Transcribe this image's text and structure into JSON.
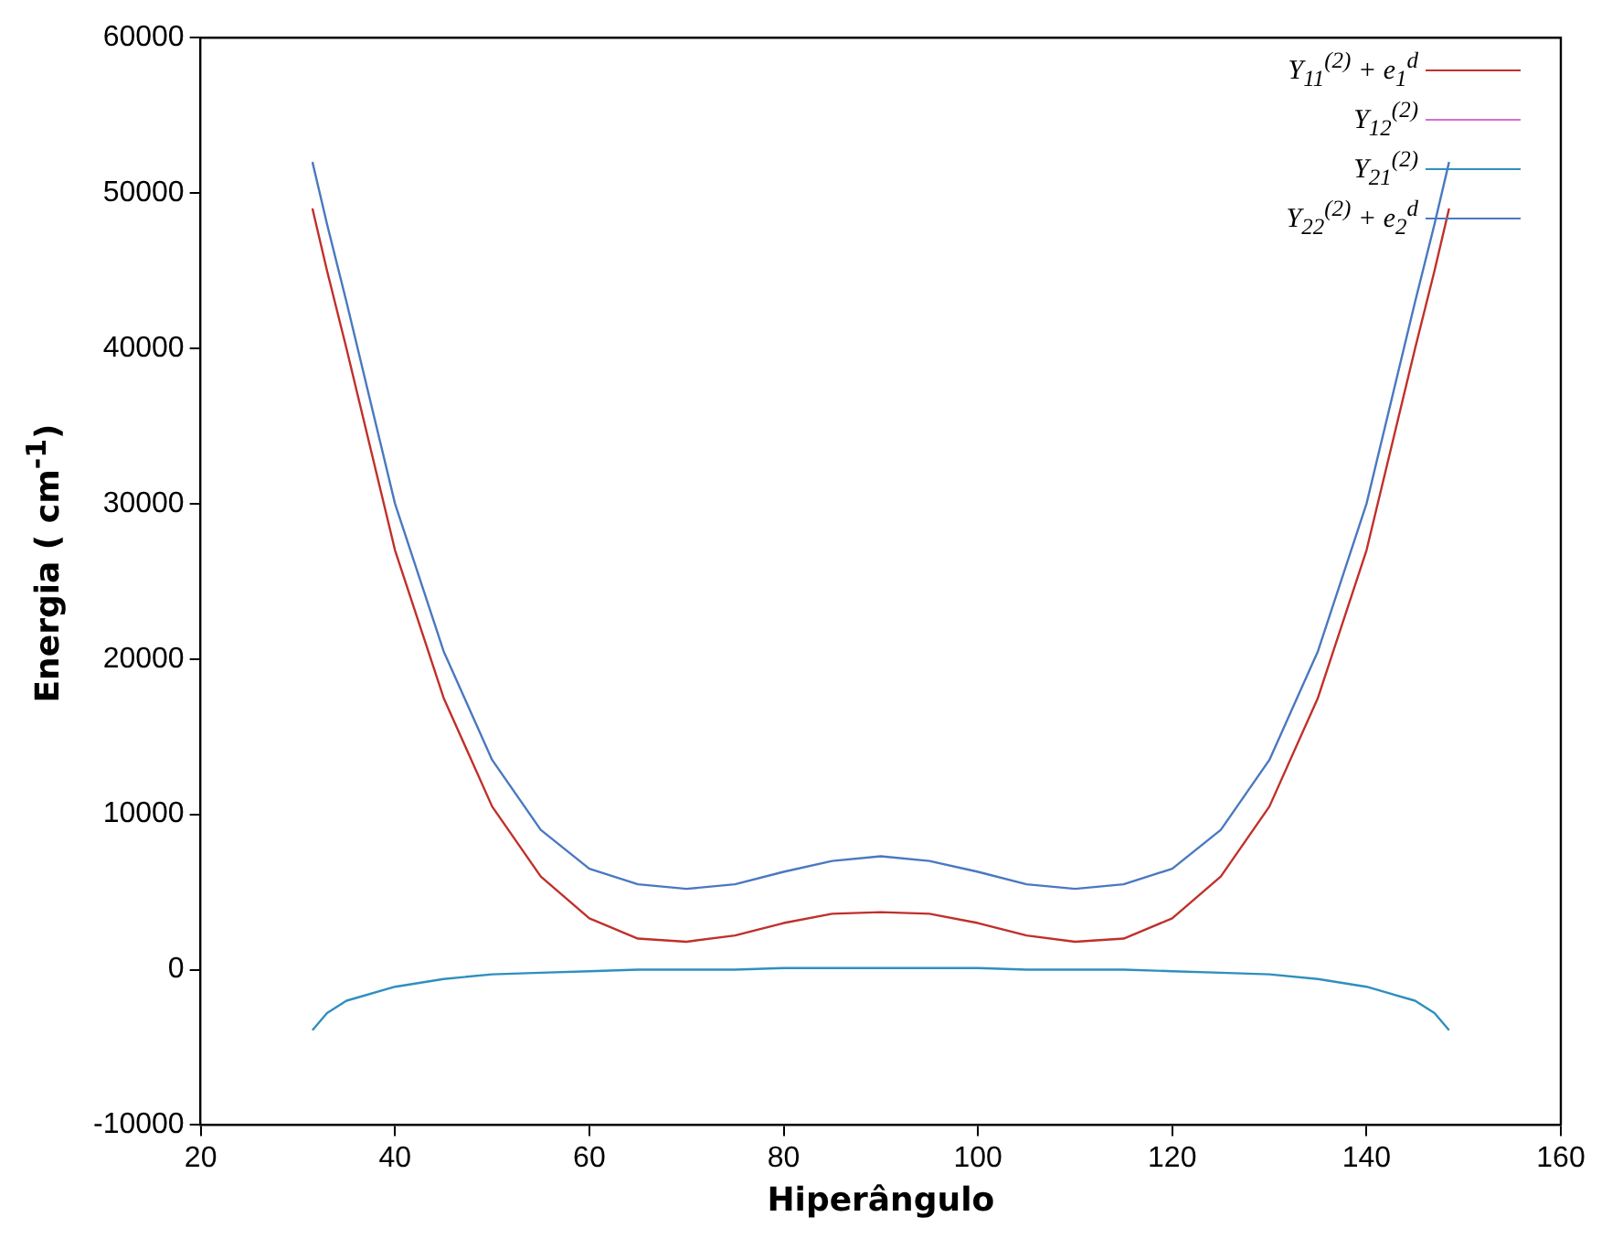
{
  "chart_data": {
    "type": "line",
    "xlabel": "Hiperângulo",
    "ylabel": "Energia ( cm$^{-1}$)",
    "x": [
      31.5,
      33,
      35,
      40,
      45,
      50,
      55,
      60,
      65,
      70,
      75,
      80,
      85,
      90,
      95,
      100,
      105,
      110,
      115,
      120,
      125,
      130,
      135,
      140,
      145,
      147,
      148.5
    ],
    "series": [
      {
        "name": "Y$_{11}$$^{(2)}$ + e$_{1}$$^{d}$",
        "color": "#c0302a",
        "values": [
          49000,
          45000,
          40000,
          27000,
          17500,
          10500,
          6000,
          3300,
          2000,
          1800,
          2200,
          3000,
          3600,
          3700,
          3600,
          3000,
          2200,
          1800,
          2000,
          3300,
          6000,
          10500,
          17500,
          27000,
          40000,
          45000,
          49000
        ]
      },
      {
        "name": "Y$_{12}$$^{(2)}$",
        "color": "#d070d0",
        "values": [
          null,
          null,
          null,
          null,
          null,
          null,
          null,
          null,
          null,
          null,
          null,
          null,
          null,
          null,
          null,
          null,
          null,
          null,
          null,
          null,
          null,
          null,
          null,
          null,
          null,
          null,
          null
        ]
      },
      {
        "name": "Y$_{21}$$^{(2)}$",
        "color": "#2f8fbf",
        "values": [
          -3900,
          -2800,
          -2000,
          -1100,
          -600,
          -300,
          -200,
          -100,
          0,
          0,
          0,
          100,
          100,
          100,
          100,
          100,
          0,
          0,
          0,
          -100,
          -200,
          -300,
          -600,
          -1100,
          -2000,
          -2800,
          -3900
        ]
      },
      {
        "name": "Y$_{22}$$^{(2)}$ + e$_{2}$$^{d}$",
        "color": "#4a78c0",
        "values": [
          52000,
          48000,
          43000,
          30000,
          20500,
          13500,
          9000,
          6500,
          5500,
          5200,
          5500,
          6300,
          7000,
          7300,
          7000,
          6300,
          5500,
          5200,
          5500,
          6500,
          9000,
          13500,
          20500,
          30000,
          43000,
          48000,
          52000
        ]
      }
    ],
    "xlim": [
      20,
      160
    ],
    "xticks": [
      20,
      40,
      60,
      80,
      100,
      120,
      140,
      160
    ],
    "ylim": [
      -10000,
      60000
    ],
    "yticks": [
      -10000,
      0,
      10000,
      20000,
      30000,
      40000,
      50000,
      60000
    ],
    "grid": false,
    "legend": "top right",
    "marker": "none",
    "line_style": "solid"
  }
}
